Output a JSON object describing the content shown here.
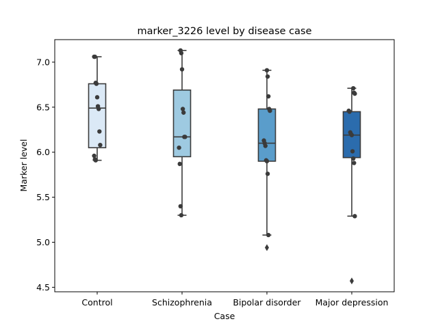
{
  "chart_data": {
    "type": "box",
    "title": "marker_3226 level by disease case",
    "xlabel": "Case",
    "ylabel": "Marker level",
    "ylim": [
      4.45,
      7.25
    ],
    "yticks": [
      4.5,
      5.0,
      5.5,
      6.0,
      6.5,
      7.0
    ],
    "ytick_labels": [
      "4.5",
      "5.0",
      "5.5",
      "6.0",
      "6.5",
      "7.0"
    ],
    "categories": [
      "Control",
      "Schizophrenia",
      "Bipolar disorder",
      "Major depression"
    ],
    "colors": [
      "#dbe9f6",
      "#9ecae1",
      "#5a9dcb",
      "#2b6cad"
    ],
    "boxes": [
      {
        "q1": 6.05,
        "median": 6.49,
        "q3": 6.76,
        "whisker_low": 5.91,
        "whisker_high": 7.06,
        "outliers": []
      },
      {
        "q1": 5.95,
        "median": 6.17,
        "q3": 6.69,
        "whisker_low": 5.3,
        "whisker_high": 7.13,
        "outliers": []
      },
      {
        "q1": 5.9,
        "median": 6.1,
        "q3": 6.48,
        "whisker_low": 5.08,
        "whisker_high": 6.91,
        "outliers": [
          4.94
        ]
      },
      {
        "q1": 5.94,
        "median": 6.19,
        "q3": 6.45,
        "whisker_low": 5.29,
        "whisker_high": 6.71,
        "outliers": [
          4.57
        ]
      }
    ],
    "points": [
      [
        7.06,
        7.06,
        6.77,
        6.76,
        6.61,
        6.51,
        6.48,
        6.23,
        6.08,
        5.96,
        5.92,
        5.91
      ],
      [
        7.13,
        7.1,
        6.92,
        6.48,
        6.44,
        6.17,
        6.17,
        6.05,
        5.87,
        5.4,
        5.3
      ],
      [
        6.91,
        6.84,
        6.62,
        6.48,
        6.46,
        6.13,
        6.1,
        6.07,
        5.91,
        5.9,
        5.76,
        5.08
      ],
      [
        6.71,
        6.66,
        6.65,
        6.46,
        6.45,
        6.22,
        6.2,
        6.19,
        6.01,
        5.93,
        5.88,
        5.29
      ]
    ]
  }
}
